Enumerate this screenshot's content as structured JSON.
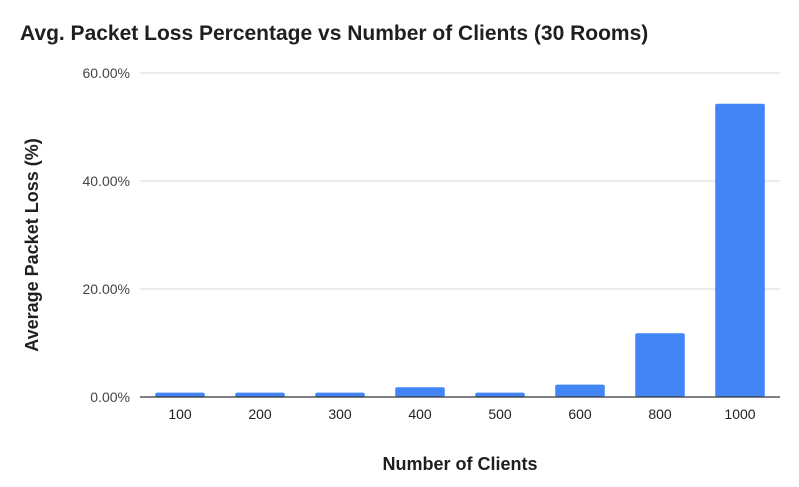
{
  "chart_data": {
    "type": "bar",
    "title": "Avg. Packet Loss Percentage vs Number of Clients (30 Rooms)",
    "xlabel": "Number of Clients",
    "ylabel": "Average Packet Loss (%)",
    "categories": [
      "100",
      "200",
      "300",
      "400",
      "500",
      "600",
      "800",
      "1000"
    ],
    "values": [
      0.8,
      0.8,
      0.8,
      1.8,
      0.8,
      2.3,
      11.8,
      54.3
    ],
    "ylim": [
      0,
      60
    ],
    "yticks": [
      0,
      20,
      40,
      60
    ],
    "ytick_labels": [
      "0.00%",
      "20.00%",
      "40.00%",
      "60.00%"
    ],
    "grid": true,
    "legend": "none",
    "bar_color": "#4285F4",
    "grid_color": "#d9d9d9",
    "axis_color": "#333333"
  }
}
